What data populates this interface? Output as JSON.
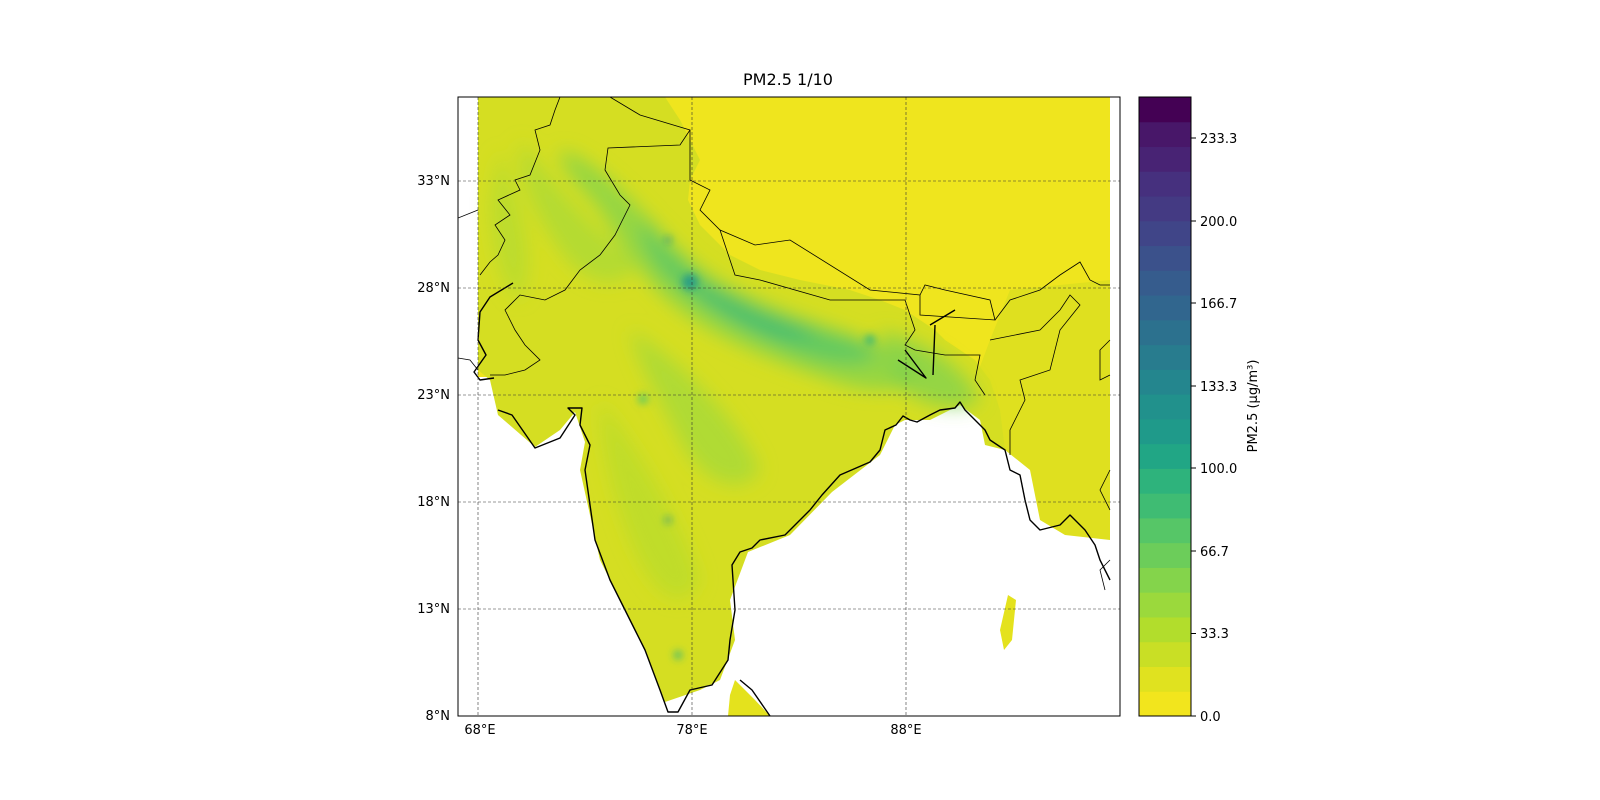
{
  "title": "PM2.5 1/10",
  "map": {
    "lon_ticks": [
      "68°E",
      "78°E",
      "88°E"
    ],
    "lat_ticks": [
      "33°N",
      "28°N",
      "23°N",
      "18°N",
      "13°N",
      "8°N"
    ],
    "extent_deg": {
      "lon": [
        67,
        98
      ],
      "lat": [
        8,
        37
      ]
    },
    "gridlines": true,
    "gridline_style": "dashed"
  },
  "colorbar": {
    "label": "PM2.5 (µg/m³)",
    "ticks": [
      "0.0",
      "33.3",
      "66.7",
      "100.0",
      "133.3",
      "166.7",
      "200.0",
      "233.3"
    ],
    "range": [
      0,
      250
    ],
    "levels": 25,
    "colormap": [
      "#f2e51d",
      "#e0e21f",
      "#c9df25",
      "#b2dd2c",
      "#9bd93c",
      "#84d44b",
      "#6ccd5a",
      "#56c667",
      "#3fbc73",
      "#2eb37c",
      "#21a685",
      "#1f9a8a",
      "#21918c",
      "#24868e",
      "#287c8e",
      "#2c718e",
      "#31668e",
      "#365c8d",
      "#3b518b",
      "#404588",
      "#443a83",
      "#46307e",
      "#482374",
      "#481769",
      "#440154"
    ]
  },
  "colors": {
    "coastline": "#000000",
    "borders": "#000000",
    "ocean": "#ffffff",
    "low_pm": "#f2e51d",
    "mid_pm": "#8fd744",
    "high_pm": "#35b779"
  }
}
